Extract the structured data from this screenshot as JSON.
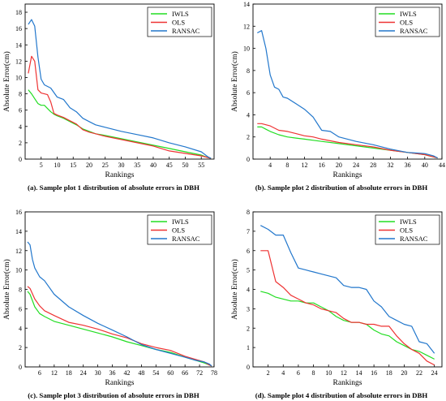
{
  "chart_data": [
    {
      "type": "line",
      "caption": "(a). Sample plot 1 distribution of absolute errors in DBH",
      "xlabel": "Rankings",
      "ylabel": "Absolute Error(cm)",
      "xlim": [
        0,
        59
      ],
      "ylim": [
        0,
        19
      ],
      "xticks": [
        5,
        10,
        15,
        20,
        25,
        30,
        35,
        40,
        45,
        50,
        55
      ],
      "yticks": [
        0,
        2,
        4,
        6,
        8,
        10,
        12,
        14,
        16,
        18
      ],
      "legend": "top-right",
      "grid": false,
      "series": [
        {
          "name": "IWLS",
          "color": "#22dd22",
          "x": [
            1,
            2,
            3,
            4,
            5,
            6,
            7,
            8,
            9,
            10,
            12,
            14,
            16,
            18,
            20,
            22,
            25,
            30,
            35,
            40,
            45,
            50,
            55,
            57,
            58
          ],
          "y": [
            8.5,
            8.0,
            7.4,
            6.8,
            6.6,
            6.6,
            6.2,
            5.8,
            5.5,
            5.3,
            5.0,
            4.6,
            4.2,
            3.7,
            3.4,
            3.1,
            2.9,
            2.5,
            2.1,
            1.7,
            1.3,
            0.9,
            0.5,
            0.2,
            0.1
          ]
        },
        {
          "name": "OLS",
          "color": "#ee3333",
          "x": [
            1,
            2,
            3,
            4,
            5,
            6,
            7,
            8,
            9,
            10,
            12,
            14,
            16,
            18,
            20,
            22,
            25,
            30,
            35,
            40,
            45,
            50,
            55,
            57,
            58
          ],
          "y": [
            10.5,
            12.6,
            12.0,
            8.5,
            8.1,
            8.0,
            7.9,
            7.0,
            5.6,
            5.4,
            5.1,
            4.7,
            4.3,
            3.6,
            3.3,
            3.1,
            2.8,
            2.4,
            2.0,
            1.6,
            1.0,
            0.7,
            0.4,
            0.2,
            0.1
          ]
        },
        {
          "name": "RANSAC",
          "color": "#2277cc",
          "x": [
            1,
            2,
            3,
            4,
            5,
            6,
            8,
            10,
            12,
            14,
            16,
            18,
            20,
            22,
            25,
            30,
            35,
            40,
            45,
            50,
            55,
            57,
            58
          ],
          "y": [
            16.5,
            17.1,
            16.3,
            12.5,
            9.8,
            9.1,
            8.7,
            7.6,
            7.3,
            6.3,
            5.8,
            5.0,
            4.6,
            4.2,
            3.9,
            3.4,
            3.0,
            2.6,
            2.0,
            1.5,
            0.9,
            0.3,
            0.1
          ]
        }
      ]
    },
    {
      "type": "line",
      "caption": "(b). Sample plot 2 distribution of absolute errors in DBH",
      "xlabel": "Rankings",
      "ylabel": "Absolute Error(cm)",
      "xlim": [
        0,
        44
      ],
      "ylim": [
        0,
        14
      ],
      "xticks": [
        4,
        8,
        12,
        16,
        20,
        24,
        28,
        32,
        36,
        40,
        44
      ],
      "yticks": [
        0,
        2,
        4,
        6,
        8,
        10,
        12,
        14
      ],
      "legend": "top-right",
      "grid": false,
      "series": [
        {
          "name": "IWLS",
          "color": "#22dd22",
          "x": [
            1,
            2,
            3,
            4,
            6,
            8,
            10,
            12,
            14,
            16,
            20,
            24,
            28,
            32,
            36,
            40,
            42,
            43
          ],
          "y": [
            2.9,
            2.9,
            2.7,
            2.5,
            2.2,
            2.0,
            1.9,
            1.8,
            1.7,
            1.6,
            1.4,
            1.2,
            1.0,
            0.8,
            0.6,
            0.4,
            0.2,
            0.1
          ]
        },
        {
          "name": "OLS",
          "color": "#ee3333",
          "x": [
            1,
            2,
            3,
            4,
            6,
            8,
            10,
            12,
            14,
            16,
            20,
            24,
            28,
            32,
            36,
            40,
            42,
            43
          ],
          "y": [
            3.2,
            3.2,
            3.1,
            3.0,
            2.6,
            2.5,
            2.3,
            2.1,
            2.0,
            1.8,
            1.5,
            1.3,
            1.1,
            0.8,
            0.6,
            0.4,
            0.2,
            0.1
          ]
        },
        {
          "name": "RANSAC",
          "color": "#2277cc",
          "x": [
            1,
            2,
            3,
            4,
            5,
            6,
            7,
            8,
            10,
            12,
            14,
            16,
            18,
            20,
            24,
            28,
            32,
            36,
            40,
            42,
            43
          ],
          "y": [
            11.4,
            11.6,
            10.0,
            7.6,
            6.5,
            6.3,
            5.6,
            5.5,
            5.0,
            4.5,
            3.8,
            2.6,
            2.5,
            2.0,
            1.6,
            1.3,
            0.9,
            0.6,
            0.5,
            0.3,
            0.1
          ]
        }
      ]
    },
    {
      "type": "line",
      "caption": "(c). Sample plot 3 distribution of absolute errors in DBH",
      "xlabel": "Rankings",
      "ylabel": "Absolute Error(cm)",
      "xlim": [
        0,
        78
      ],
      "ylim": [
        0,
        16
      ],
      "xticks": [
        6,
        12,
        18,
        24,
        30,
        36,
        42,
        48,
        54,
        60,
        66,
        72,
        78
      ],
      "yticks": [
        0,
        2,
        4,
        6,
        8,
        10,
        12,
        14,
        16
      ],
      "legend": "top-right",
      "grid": false,
      "series": [
        {
          "name": "IWLS",
          "color": "#22dd22",
          "x": [
            1,
            2,
            4,
            6,
            8,
            12,
            18,
            24,
            30,
            36,
            42,
            48,
            54,
            60,
            66,
            70,
            74,
            76,
            77
          ],
          "y": [
            7.8,
            7.5,
            6.2,
            5.5,
            5.2,
            4.7,
            4.3,
            3.9,
            3.5,
            3.1,
            2.6,
            2.2,
            1.8,
            1.5,
            1.0,
            0.7,
            0.4,
            0.2,
            0.1
          ]
        },
        {
          "name": "OLS",
          "color": "#ee3333",
          "x": [
            1,
            2,
            4,
            6,
            8,
            12,
            18,
            24,
            30,
            36,
            42,
            48,
            54,
            60,
            66,
            70,
            74,
            76,
            77
          ],
          "y": [
            8.3,
            8.1,
            7.0,
            6.3,
            5.8,
            5.3,
            4.6,
            4.3,
            3.9,
            3.4,
            3.0,
            2.4,
            2.0,
            1.7,
            1.1,
            0.8,
            0.5,
            0.2,
            0.1
          ]
        },
        {
          "name": "RANSAC",
          "color": "#2277cc",
          "x": [
            1,
            2,
            3,
            4,
            6,
            8,
            12,
            18,
            24,
            30,
            36,
            42,
            48,
            54,
            60,
            66,
            70,
            74,
            76,
            77
          ],
          "y": [
            12.9,
            12.6,
            11.1,
            10.2,
            9.3,
            8.9,
            7.5,
            6.2,
            5.3,
            4.5,
            3.8,
            3.1,
            2.3,
            1.8,
            1.4,
            1.0,
            0.7,
            0.5,
            0.3,
            0.1
          ]
        }
      ]
    },
    {
      "type": "line",
      "caption": "(d). Sample plot 4 distribution of absolute errors in DBH",
      "xlabel": "Rankings",
      "ylabel": "Absolute Error(cm)",
      "xlim": [
        0,
        25
      ],
      "ylim": [
        0,
        8
      ],
      "xticks": [
        2,
        4,
        6,
        8,
        10,
        12,
        14,
        16,
        18,
        20,
        22,
        24
      ],
      "yticks": [
        0,
        1,
        2,
        3,
        4,
        5,
        6,
        7,
        8
      ],
      "legend": "top-right",
      "grid": false,
      "series": [
        {
          "name": "IWLS",
          "color": "#22dd22",
          "x": [
            1,
            2,
            3,
            4,
            5,
            6,
            7,
            8,
            9,
            10,
            11,
            12,
            13,
            14,
            15,
            16,
            17,
            18,
            19,
            20,
            21,
            22,
            23,
            24
          ],
          "y": [
            3.9,
            3.8,
            3.6,
            3.5,
            3.4,
            3.4,
            3.3,
            3.3,
            3.1,
            2.9,
            2.6,
            2.4,
            2.3,
            2.3,
            2.2,
            1.9,
            1.7,
            1.6,
            1.3,
            1.1,
            0.9,
            0.8,
            0.6,
            0.4
          ]
        },
        {
          "name": "OLS",
          "color": "#ee3333",
          "x": [
            1,
            2,
            3,
            4,
            5,
            6,
            7,
            8,
            9,
            10,
            11,
            12,
            13,
            14,
            15,
            16,
            17,
            18,
            19,
            20,
            21,
            22,
            23,
            24
          ],
          "y": [
            6.0,
            6.0,
            4.4,
            4.1,
            3.7,
            3.5,
            3.3,
            3.2,
            3.0,
            2.9,
            2.8,
            2.5,
            2.3,
            2.3,
            2.2,
            2.2,
            2.1,
            2.1,
            1.6,
            1.2,
            0.9,
            0.7,
            0.3,
            0.1
          ]
        },
        {
          "name": "RANSAC",
          "color": "#2277cc",
          "x": [
            1,
            2,
            3,
            4,
            5,
            6,
            7,
            8,
            9,
            10,
            11,
            12,
            13,
            14,
            15,
            16,
            17,
            18,
            19,
            20,
            21,
            22,
            23,
            24
          ],
          "y": [
            7.3,
            7.1,
            6.8,
            6.8,
            5.9,
            5.1,
            5.0,
            4.9,
            4.8,
            4.7,
            4.6,
            4.2,
            4.1,
            4.1,
            4.0,
            3.4,
            3.1,
            2.6,
            2.4,
            2.2,
            2.1,
            1.3,
            1.2,
            0.7
          ]
        }
      ]
    }
  ]
}
